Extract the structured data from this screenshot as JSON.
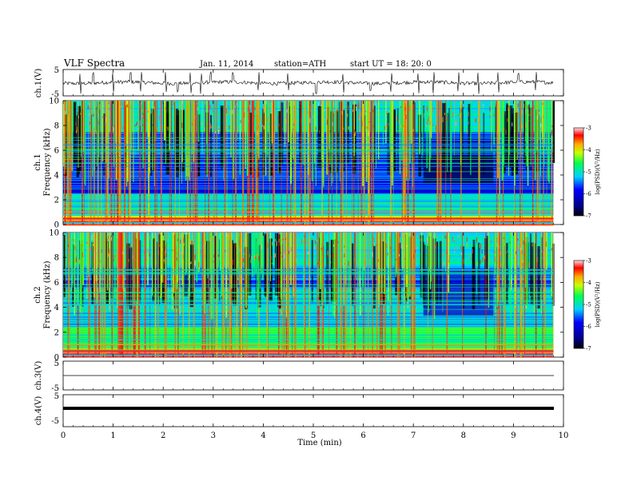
{
  "header": {
    "title": "VLF Spectra",
    "date": "Jan. 11, 2014",
    "station": "station=ATH",
    "start": "start  UT =   18: 20: 0"
  },
  "chart_data": [
    {
      "id": "ch1-waveform",
      "type": "line",
      "ylabel": "ch.1(V)",
      "ylim": [
        -5,
        5
      ],
      "yticks": [
        "5",
        "-5"
      ],
      "xlim": [
        0,
        10
      ],
      "data_extent_min": [
        0,
        9.8
      ],
      "description_level": "noisy signal around 0 V with spikes up to about ±4 V",
      "spike_times_min": [
        0.35,
        0.6,
        1.0,
        1.35,
        1.55,
        2.05,
        2.3,
        2.55,
        2.75,
        2.95,
        3.4,
        3.9,
        4.5,
        5.05,
        5.6,
        6.15,
        6.55,
        7.1,
        7.4,
        7.9,
        8.3,
        8.7,
        9.1,
        9.45
      ]
    },
    {
      "id": "ch1-spectrogram",
      "type": "heatmap",
      "ylabel": "ch.1\nFrequency (kHz)",
      "ylim": [
        0,
        10
      ],
      "yticks": [
        "0",
        "2",
        "4",
        "6",
        "8",
        "10"
      ],
      "xlim": [
        0,
        10
      ],
      "colorbar": {
        "label": "log(PSD)(V²/Hz)",
        "range": [
          -7,
          -3
        ],
        "ticks": [
          "-3",
          "-4",
          "-5",
          "-6",
          "-7"
        ]
      },
      "colors": [
        "#000000",
        "#0000ff",
        "#00ffff",
        "#00ff00",
        "#ffff00",
        "#ff0000",
        "#ffffff"
      ],
      "quiet_band_min": [
        7.2,
        8.6
      ],
      "sferic_density": "dense vertical impulses across all frequencies"
    },
    {
      "id": "ch2-spectrogram",
      "type": "heatmap",
      "ylabel": "ch.2\nFrequency (kHz)",
      "ylim": [
        0,
        10
      ],
      "yticks": [
        "0",
        "2",
        "4",
        "6",
        "8",
        "10"
      ],
      "xlim": [
        0,
        10
      ],
      "colorbar": {
        "label": "log(PSD)(V²/Hz)",
        "range": [
          -7,
          -3
        ],
        "ticks": [
          "-3",
          "-4",
          "-5",
          "-6",
          "-7"
        ]
      },
      "colors": [
        "#000000",
        "#0000ff",
        "#00ffff",
        "#00ff00",
        "#ffff00",
        "#ff0000",
        "#ffffff"
      ],
      "quiet_band_min": [
        7.2,
        8.6
      ]
    },
    {
      "id": "ch3-waveform",
      "type": "line",
      "ylabel": "ch.3(V)",
      "ylim": [
        -5,
        5
      ],
      "yticks": [
        "5",
        "-5"
      ],
      "xlim": [
        0,
        10
      ],
      "level_V": 0
    },
    {
      "id": "ch4-waveform",
      "type": "line",
      "ylabel": "ch.4(V)",
      "ylim": [
        -5,
        5
      ],
      "yticks": [
        "5",
        "-5"
      ],
      "xlim": [
        0,
        10
      ],
      "level_V": 0
    }
  ],
  "xaxis": {
    "label": "Time (min)",
    "ticks": [
      "0",
      "1",
      "2",
      "3",
      "4",
      "5",
      "6",
      "7",
      "8",
      "9",
      "10"
    ]
  }
}
